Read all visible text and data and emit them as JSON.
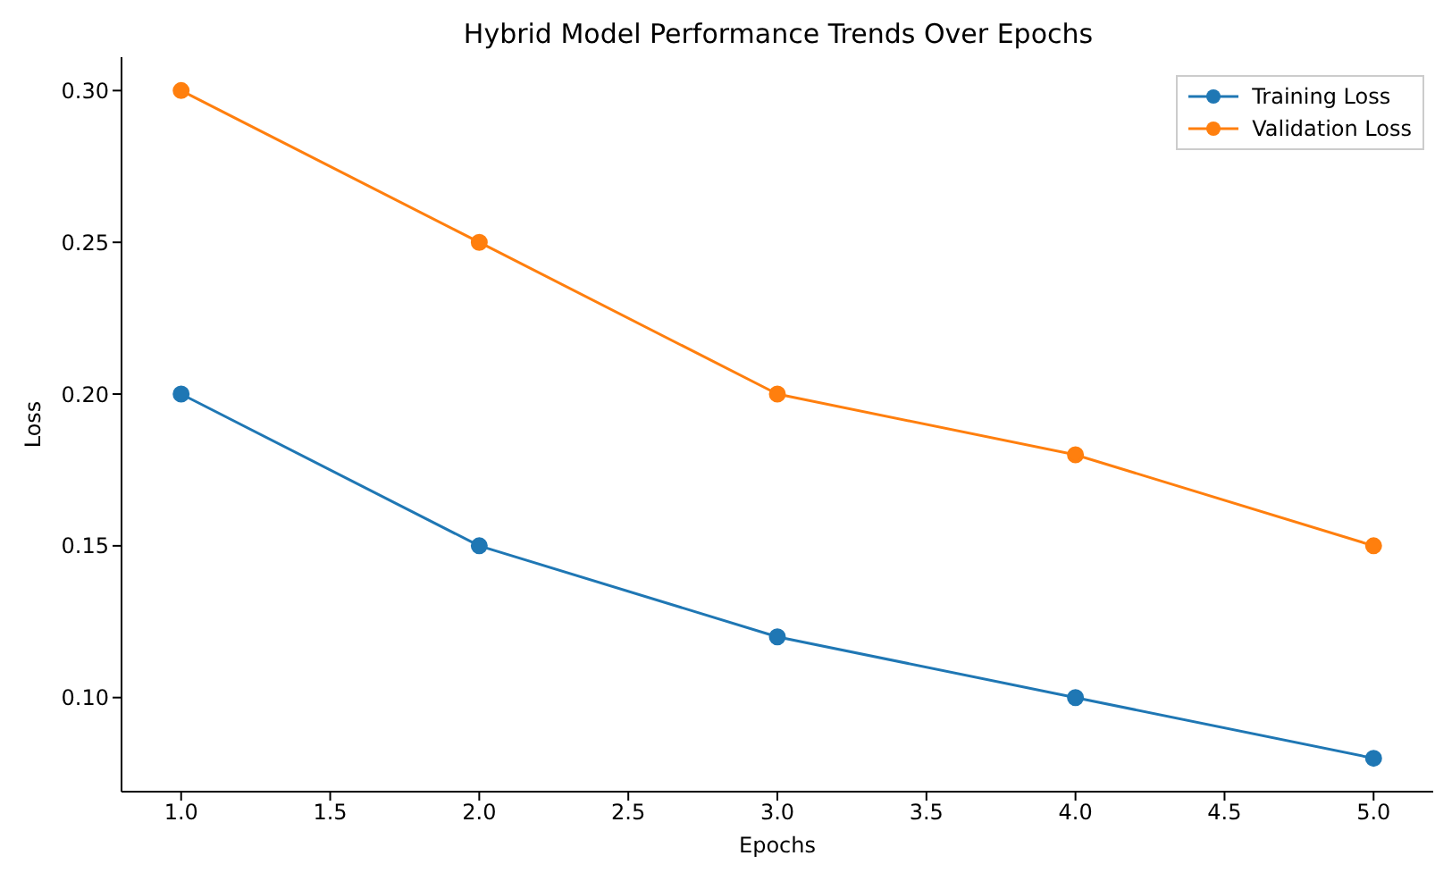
{
  "chart_data": {
    "type": "line",
    "title": "Hybrid Model Performance Trends Over Epochs",
    "xlabel": "Epochs",
    "ylabel": "Loss",
    "x": [
      1,
      2,
      3,
      4,
      5
    ],
    "series": [
      {
        "name": "Training Loss",
        "color": "#1f77b4",
        "values": [
          0.2,
          0.15,
          0.12,
          0.1,
          0.08
        ]
      },
      {
        "name": "Validation Loss",
        "color": "#ff7f0e",
        "values": [
          0.3,
          0.25,
          0.2,
          0.18,
          0.15
        ]
      }
    ],
    "xlim": [
      0.8,
      5.2
    ],
    "xticks": [
      {
        "value": 1,
        "label": "1.0"
      },
      {
        "value": 1.5,
        "label": "1.5"
      },
      {
        "value": 2,
        "label": "2.0"
      },
      {
        "value": 2.5,
        "label": "2.5"
      },
      {
        "value": 3,
        "label": "3.0"
      },
      {
        "value": 3.5,
        "label": "3.5"
      },
      {
        "value": 4,
        "label": "4.0"
      },
      {
        "value": 4.5,
        "label": "4.5"
      },
      {
        "value": 5,
        "label": "5.0"
      }
    ],
    "ylim": [
      0.069,
      0.311
    ],
    "yticks": [
      {
        "value": 0.1,
        "label": "0.10"
      },
      {
        "value": 0.15,
        "label": "0.15"
      },
      {
        "value": 0.2,
        "label": "0.20"
      },
      {
        "value": 0.25,
        "label": "0.25"
      },
      {
        "value": 0.3,
        "label": "0.30"
      }
    ],
    "grid": false,
    "legend": "top right",
    "marker": "circle",
    "line_style": "solid"
  }
}
